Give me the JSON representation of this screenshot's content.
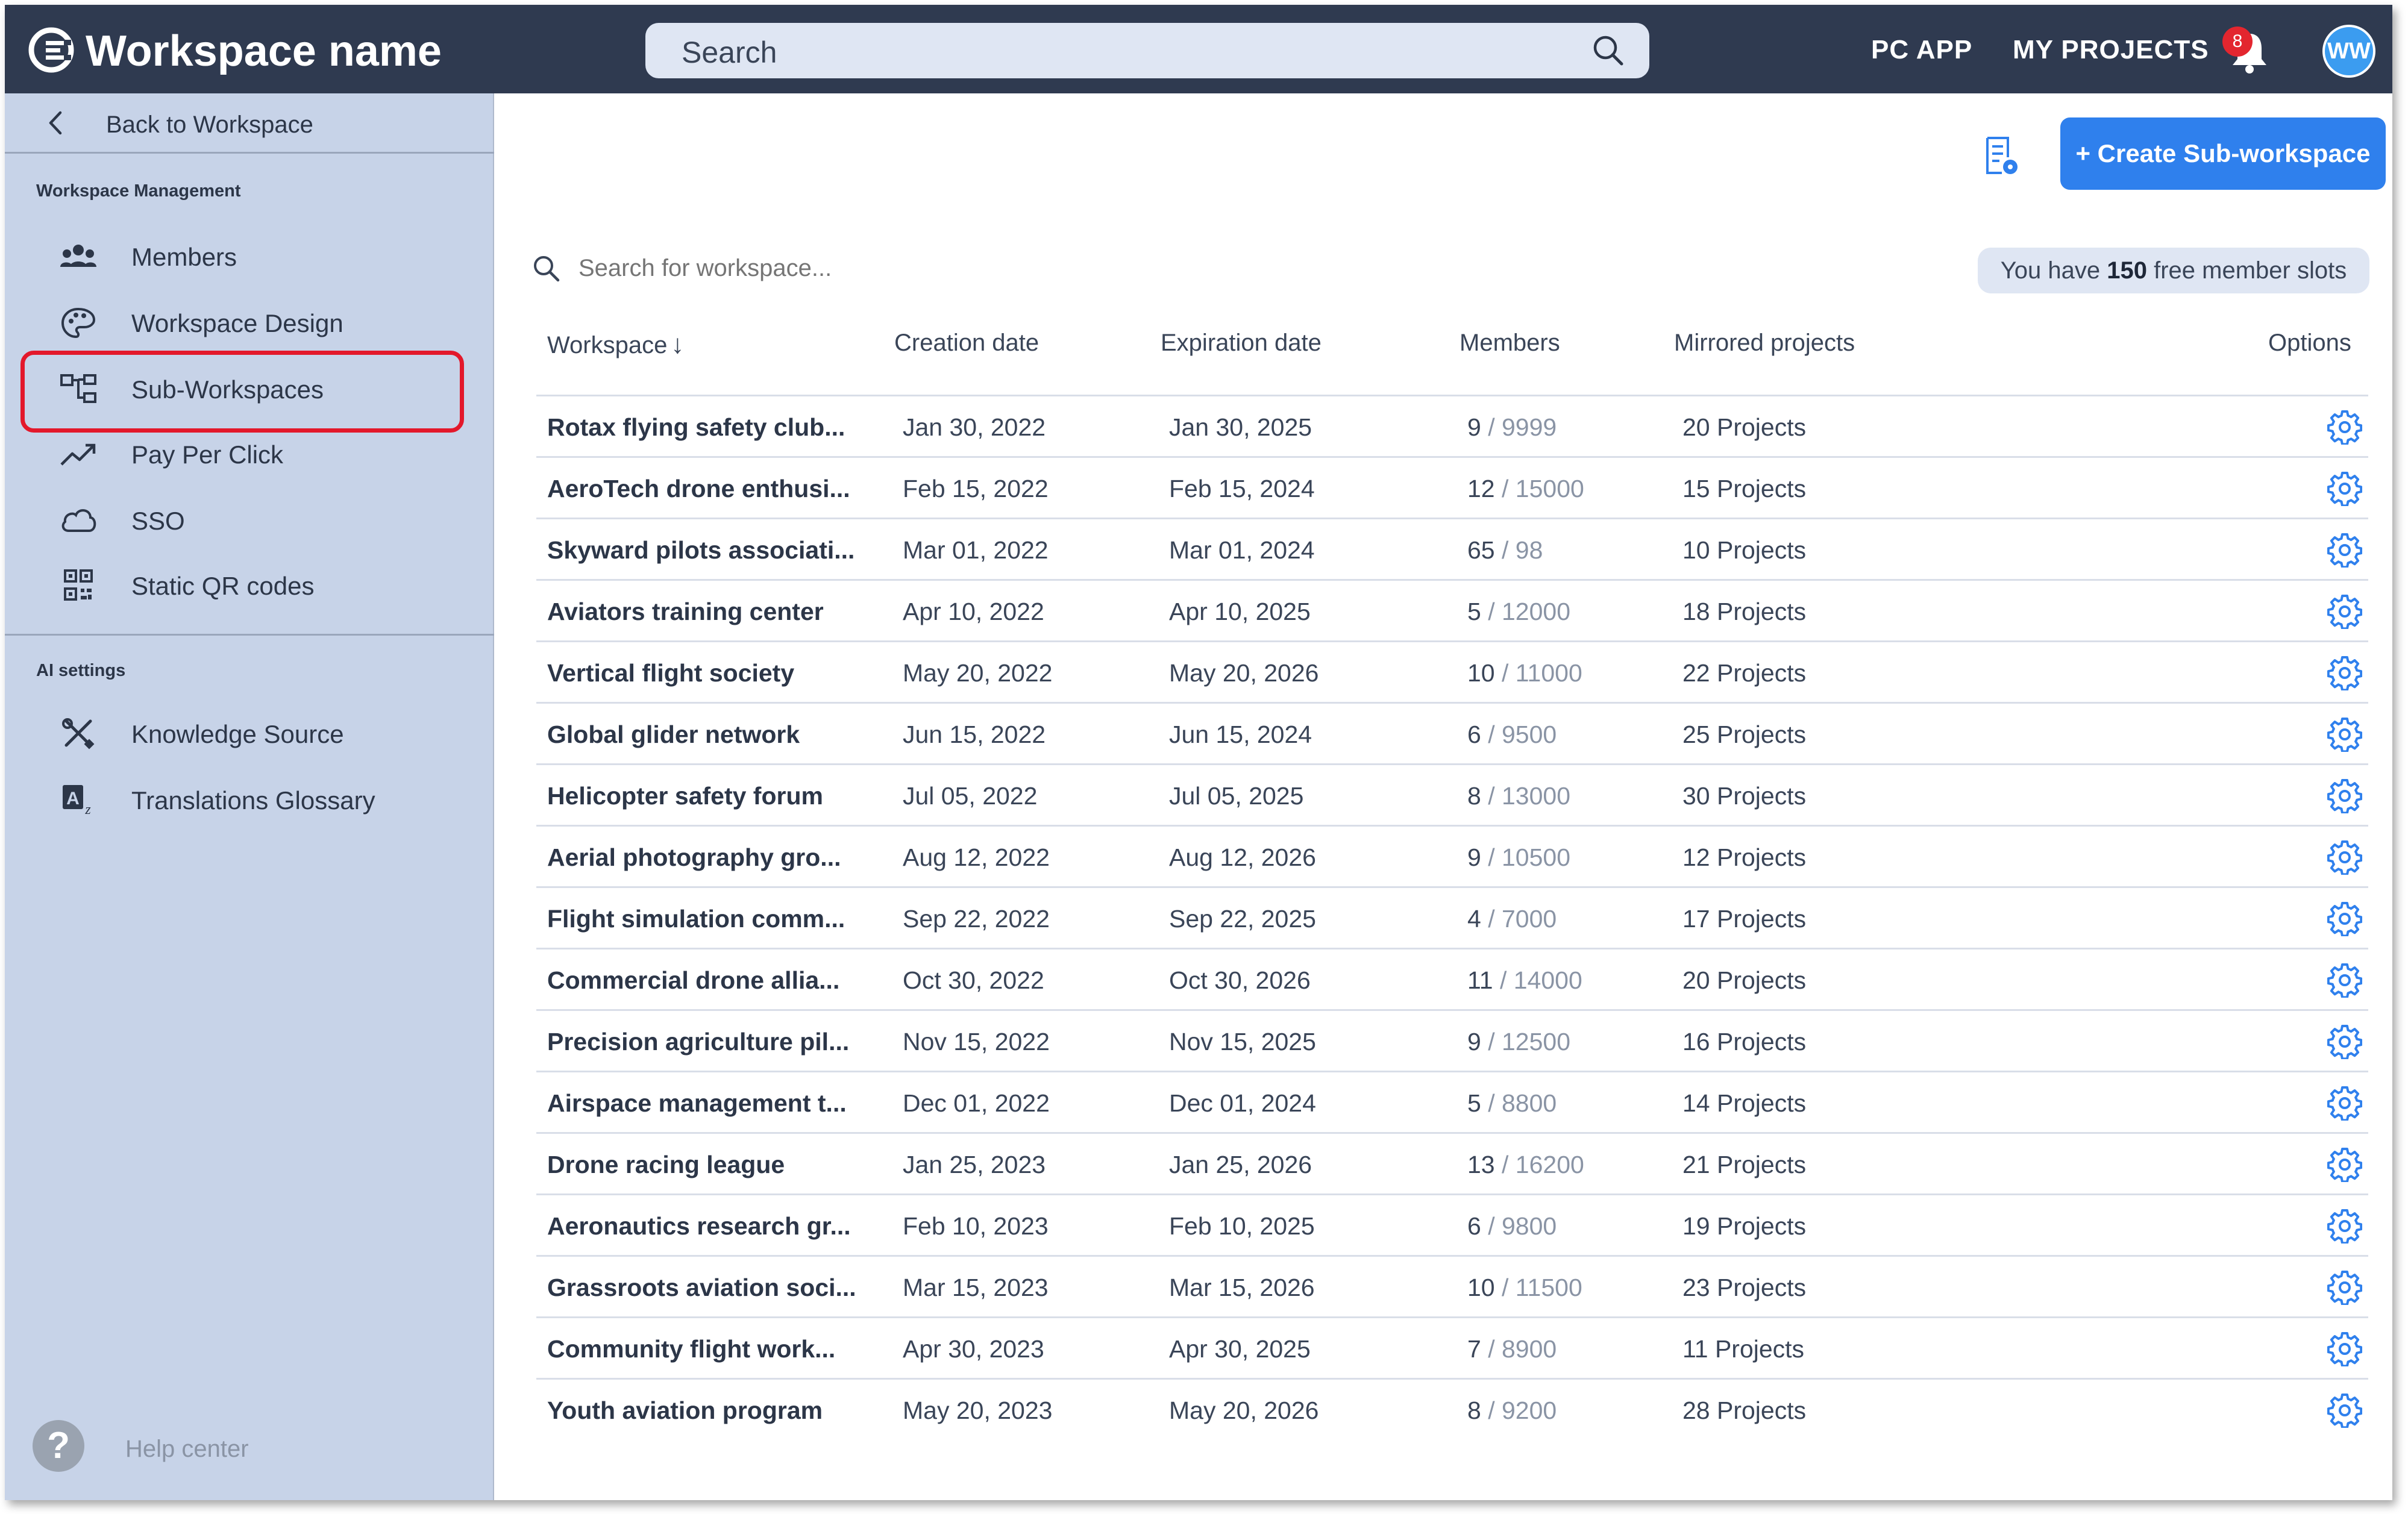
{
  "header": {
    "workspace_name": "Workspace name",
    "search_placeholder": "Search",
    "pc_app": "PC APP",
    "my_projects": "MY PROJECTS",
    "notification_count": "8",
    "avatar_initials": "WW"
  },
  "sidebar": {
    "back_label": "Back to Workspace",
    "management_title": "Workspace Management",
    "management_items": [
      {
        "label": "Members",
        "icon": "members-icon"
      },
      {
        "label": "Workspace Design",
        "icon": "palette-icon"
      },
      {
        "label": "Sub-Workspaces",
        "icon": "hierarchy-icon",
        "selected": true
      },
      {
        "label": "Pay Per Click",
        "icon": "trend-icon"
      },
      {
        "label": "SSO",
        "icon": "cloud-icon"
      },
      {
        "label": "Static QR codes",
        "icon": "qr-icon"
      }
    ],
    "ai_title": "AI settings",
    "ai_items": [
      {
        "label": "Knowledge Source",
        "icon": "tools-icon"
      },
      {
        "label": "Translations Glossary",
        "icon": "translate-icon"
      }
    ],
    "help_label": "Help center"
  },
  "main": {
    "create_button": "+ Create Sub-workspace",
    "search_placeholder": "Search for workspace...",
    "slots_prefix": "You have ",
    "slots_count": "150",
    "slots_suffix": " free member slots",
    "columns": [
      "Workspace",
      "Creation date",
      "Expiration date",
      "Members",
      "Mirrored projects",
      "Options"
    ],
    "rows": [
      {
        "name": "Rotax flying safety club...",
        "created": "Jan 30, 2022",
        "expires": "Jan 30, 2025",
        "members": "9",
        "limit": "9999",
        "projects": "20 Projects"
      },
      {
        "name": "AeroTech drone enthusi...",
        "created": "Feb 15, 2022",
        "expires": "Feb 15, 2024",
        "members": "12",
        "limit": "15000",
        "projects": "15 Projects"
      },
      {
        "name": "Skyward pilots associati...",
        "created": "Mar 01, 2022",
        "expires": "Mar 01, 2024",
        "members": "65",
        "limit": "98",
        "projects": "10 Projects"
      },
      {
        "name": "Aviators training center",
        "created": "Apr 10, 2022",
        "expires": "Apr 10, 2025",
        "members": "5",
        "limit": "12000",
        "projects": "18 Projects"
      },
      {
        "name": "Vertical flight society",
        "created": "May 20, 2022",
        "expires": "May 20, 2026",
        "members": "10",
        "limit": "11000",
        "projects": "22 Projects"
      },
      {
        "name": "Global glider network",
        "created": "Jun 15, 2022",
        "expires": "Jun 15, 2024",
        "members": "6",
        "limit": "9500",
        "projects": "25 Projects"
      },
      {
        "name": "Helicopter safety forum",
        "created": "Jul 05, 2022",
        "expires": "Jul 05, 2025",
        "members": "8",
        "limit": "13000",
        "projects": "30 Projects"
      },
      {
        "name": "Aerial photography gro...",
        "created": "Aug 12, 2022",
        "expires": "Aug 12, 2026",
        "members": "9",
        "limit": "10500",
        "projects": "12 Projects"
      },
      {
        "name": "Flight simulation comm...",
        "created": "Sep 22, 2022",
        "expires": "Sep 22, 2025",
        "members": "4",
        "limit": "7000",
        "projects": "17 Projects"
      },
      {
        "name": "Commercial drone allia...",
        "created": "Oct 30, 2022",
        "expires": "Oct 30, 2026",
        "members": "11",
        "limit": "14000",
        "projects": "20 Projects"
      },
      {
        "name": "Precision agriculture pil...",
        "created": "Nov 15, 2022",
        "expires": "Nov 15, 2025",
        "members": "9",
        "limit": "12500",
        "projects": "16 Projects"
      },
      {
        "name": "Airspace management t...",
        "created": "Dec 01, 2022",
        "expires": "Dec 01, 2024",
        "members": "5",
        "limit": "8800",
        "projects": "14 Projects"
      },
      {
        "name": "Drone racing league",
        "created": "Jan 25, 2023",
        "expires": "Jan 25, 2026",
        "members": "13",
        "limit": "16200",
        "projects": "21 Projects"
      },
      {
        "name": "Aeronautics research gr...",
        "created": "Feb 10, 2023",
        "expires": "Feb 10, 2025",
        "members": "6",
        "limit": "9800",
        "projects": "19 Projects"
      },
      {
        "name": "Grassroots aviation soci...",
        "created": "Mar 15, 2023",
        "expires": "Mar 15, 2026",
        "members": "10",
        "limit": "11500",
        "projects": "23 Projects"
      },
      {
        "name": "Community flight work...",
        "created": "Apr 30, 2023",
        "expires": "Apr 30, 2025",
        "members": "7",
        "limit": "8900",
        "projects": "11 Projects"
      },
      {
        "name": "Youth aviation program",
        "created": "May 20, 2023",
        "expires": "May 20, 2026",
        "members": "8",
        "limit": "9200",
        "projects": "28 Projects"
      }
    ]
  },
  "colors": {
    "topbar": "#2f3a50",
    "sidebar": "#c7d3e8",
    "accent": "#2f80ed",
    "selection_outline": "#e3182b",
    "badge": "#e3262f"
  }
}
